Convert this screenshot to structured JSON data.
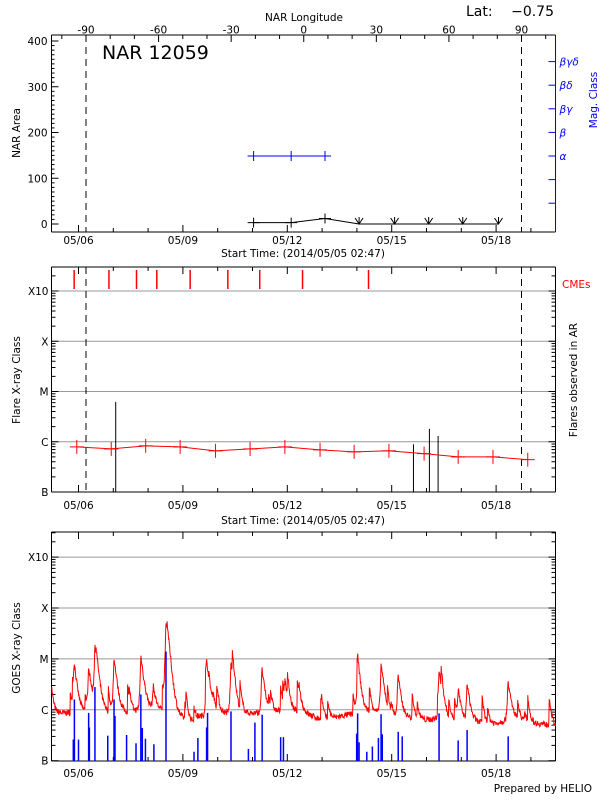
{
  "header": {
    "top_axis_label": "NAR Longitude",
    "lat_label": "Lat:",
    "lat_value": "−0.75"
  },
  "footer": "Prepared by HELIO",
  "colors": {
    "axis": "#000000",
    "grid": "#999999",
    "goes": "#ff0000",
    "flares": "#0000ff",
    "mag_class": "#0000ff",
    "cme": "#ff0000",
    "flare_class": "#ff0000"
  },
  "chart_data": [
    {
      "type": "line",
      "title": "NAR 12059",
      "xlabel": "Start Time: (2014/05/05 02:47)",
      "ylabel": "NAR Area",
      "y2label": "Mag. Class",
      "top_xlabel": "NAR Longitude",
      "top_xticks": [
        -90,
        -60,
        -30,
        0,
        30,
        60,
        90
      ],
      "limb_longitudes": [
        -90,
        90
      ],
      "xticks": [
        "05/06",
        "05/09",
        "05/12",
        "05/15",
        "05/18"
      ],
      "ylim": [
        0,
        400
      ],
      "yticks": [
        0,
        100,
        200,
        300,
        400
      ],
      "y2ticks": [
        "α",
        "β",
        "βγ",
        "βδ",
        "βγδ"
      ],
      "area": [
        {
          "t": "2014-05-11T00:45",
          "v": 3
        },
        {
          "t": "2014-05-12T02:40",
          "v": 3
        },
        {
          "t": "2014-05-13T02:00",
          "v": 12
        }
      ],
      "area_upper_limits": [
        {
          "t": "2014-05-14T01:30",
          "v": 0
        },
        {
          "t": "2014-05-15T02:00",
          "v": 0
        },
        {
          "t": "2014-05-16T01:30",
          "v": 0
        },
        {
          "t": "2014-05-17T01:00",
          "v": 0
        },
        {
          "t": "2014-05-18T01:40",
          "v": 0
        }
      ],
      "mag_class": [
        {
          "t": "2014-05-11T00:45",
          "class": "α"
        },
        {
          "t": "2014-05-12T02:40",
          "class": "α"
        },
        {
          "t": "2014-05-13T02:00",
          "class": "α"
        }
      ]
    },
    {
      "type": "line",
      "xlabel": "Start Time: (2014/05/05 02:47)",
      "ylabel": "Flare X-ray Class",
      "y2label": "Flares observed in AR",
      "cme_label": "CMEs",
      "xticks": [
        "05/06",
        "05/09",
        "05/12",
        "05/15",
        "05/18"
      ],
      "yticks": [
        "B",
        "C",
        "M",
        "X",
        "X10"
      ],
      "grid": true,
      "scale": "log",
      "daily_class": [
        {
          "t": "2014-05-05T22:50",
          "class": "B7.9"
        },
        {
          "t": "2014-05-06T22:35",
          "class": "B7.2"
        },
        {
          "t": "2014-05-07T22:20",
          "class": "B8.3"
        },
        {
          "t": "2014-05-08T22:05",
          "class": "B7.9"
        },
        {
          "t": "2014-05-09T22:30",
          "class": "B6.6"
        },
        {
          "t": "2014-05-10T22:20",
          "class": "B7.2"
        },
        {
          "t": "2014-05-11T22:20",
          "class": "B7.9"
        },
        {
          "t": "2014-05-12T22:35",
          "class": "B6.9"
        },
        {
          "t": "2014-05-13T22:05",
          "class": "B6.3"
        },
        {
          "t": "2014-05-14T22:05",
          "class": "B6.6"
        },
        {
          "t": "2014-05-15T22:20",
          "class": "B5.8"
        },
        {
          "t": "2014-05-16T21:50",
          "class": "B5.0"
        },
        {
          "t": "2014-05-17T21:50",
          "class": "B5.0"
        },
        {
          "t": "2014-05-18T21:50",
          "class": "B4.4"
        }
      ],
      "flares": [
        {
          "t": "2014-05-07T01:40",
          "class": "C6.2"
        },
        {
          "t": "2014-05-15T15:00",
          "class": "B8.9"
        },
        {
          "t": "2014-05-16T02:00",
          "class": "C1.8"
        },
        {
          "t": "2014-05-16T08:00",
          "class": "C1.3"
        }
      ],
      "cmes": [
        "2014-05-05T21:00",
        "2014-05-06T21:00",
        "2014-05-07T16:00",
        "2014-05-08T06:00",
        "2014-05-09T05:00",
        "2014-05-10T07:00",
        "2014-05-11T05:00",
        "2014-05-12T10:30",
        "2014-05-14T08:00"
      ]
    },
    {
      "type": "line",
      "ylabel": "GOES X-ray Class",
      "xticks": [
        "05/06",
        "05/09",
        "05/12",
        "05/15",
        "05/18"
      ],
      "yticks": [
        "B",
        "C",
        "M",
        "X",
        "X10"
      ],
      "grid": true,
      "scale": "log",
      "background": [
        {
          "t": "2014-05-05T03:00",
          "class": "B9.3"
        },
        {
          "t": "2014-05-05T12:00",
          "class": "B8.6"
        },
        {
          "t": "2014-05-06T00:00",
          "class": "B9.0"
        },
        {
          "t": "2014-05-06T12:00",
          "class": "B9.5"
        },
        {
          "t": "2014-05-07T00:00",
          "class": "B8.6"
        },
        {
          "t": "2014-05-07T12:00",
          "class": "B9.0"
        },
        {
          "t": "2014-05-08T00:00",
          "class": "C1.1"
        },
        {
          "t": "2014-05-08T12:00",
          "class": "B9.0"
        },
        {
          "t": "2014-05-09T00:00",
          "class": "B6.8"
        },
        {
          "t": "2014-05-09T06:00",
          "class": "B5.9"
        },
        {
          "t": "2014-05-09T12:00",
          "class": "B7.5"
        },
        {
          "t": "2014-05-10T00:00",
          "class": "B9.0"
        },
        {
          "t": "2014-05-10T12:00",
          "class": "B8.6"
        },
        {
          "t": "2014-05-11T00:00",
          "class": "B8.6"
        },
        {
          "t": "2014-05-11T12:00",
          "class": "B8.8"
        },
        {
          "t": "2014-05-12T00:00",
          "class": "C1.0"
        },
        {
          "t": "2014-05-12T12:00",
          "class": "B8.5"
        },
        {
          "t": "2014-05-13T00:00",
          "class": "B6.3"
        },
        {
          "t": "2014-05-13T12:00",
          "class": "B7.4"
        },
        {
          "t": "2014-05-14T00:00",
          "class": "B8.6"
        },
        {
          "t": "2014-05-14T12:00",
          "class": "B9.5"
        },
        {
          "t": "2014-05-15T00:00",
          "class": "B7.5"
        },
        {
          "t": "2014-05-15T12:00",
          "class": "B7.0"
        },
        {
          "t": "2014-05-16T00:00",
          "class": "B6.4"
        },
        {
          "t": "2014-05-16T12:00",
          "class": "B6.8"
        },
        {
          "t": "2014-05-17T00:00",
          "class": "B5.9"
        },
        {
          "t": "2014-05-17T12:00",
          "class": "B5.7"
        },
        {
          "t": "2014-05-18T00:00",
          "class": "B5.4"
        },
        {
          "t": "2014-05-18T12:00",
          "class": "B7.0"
        },
        {
          "t": "2014-05-19T00:00",
          "class": "B5.6"
        },
        {
          "t": "2014-05-19T16:00",
          "class": "B4.9"
        }
      ],
      "peaks": [
        {
          "t": "2014-05-05T21:00",
          "class": "C8.0"
        },
        {
          "t": "2014-05-06T07:00",
          "class": "C7.3"
        },
        {
          "t": "2014-05-06T11:20",
          "class": "M1.9"
        },
        {
          "t": "2014-05-07T00:30",
          "class": "M1.1"
        },
        {
          "t": "2014-05-07T19:00",
          "class": "M1.2"
        },
        {
          "t": "2014-05-08T03:30",
          "class": "C3.0"
        },
        {
          "t": "2014-05-08T12:20",
          "class": "M5.3"
        },
        {
          "t": "2014-05-09T16:20",
          "class": "C8.3"
        },
        {
          "t": "2014-05-10T09:10",
          "class": "C9.0"
        },
        {
          "t": "2014-05-11T06:30",
          "class": "C6.6"
        },
        {
          "t": "2014-05-11T22:20",
          "class": "C3.5"
        },
        {
          "t": "2014-05-12T08:00",
          "class": "C2.4"
        },
        {
          "t": "2014-05-14T00:30",
          "class": "C7.0"
        },
        {
          "t": "2014-05-14T16:40",
          "class": "C8.3"
        },
        {
          "t": "2014-05-15T04:20",
          "class": "C5.0"
        },
        {
          "t": "2014-05-16T08:40",
          "class": "C5.8"
        },
        {
          "t": "2014-05-16T21:50",
          "class": "C2.6"
        },
        {
          "t": "2014-05-17T04:00",
          "class": "C3.4"
        },
        {
          "t": "2014-05-18T08:10",
          "class": "C3.9"
        }
      ],
      "flares_observed": [
        {
          "t": "2014-05-05T20:25",
          "class": "B2.6"
        },
        {
          "t": "2014-05-05T21:10",
          "class": "C1.6"
        },
        {
          "t": "2014-05-06T00:00",
          "class": "B2.6"
        },
        {
          "t": "2014-05-06T07:00",
          "class": "B8.7"
        },
        {
          "t": "2014-05-06T07:30",
          "class": "B4.5"
        },
        {
          "t": "2014-05-06T11:20",
          "class": "C2.8"
        },
        {
          "t": "2014-05-06T20:10",
          "class": "B3.1"
        },
        {
          "t": "2014-05-07T00:30",
          "class": "C1.6"
        },
        {
          "t": "2014-05-07T01:10",
          "class": "B7.6"
        },
        {
          "t": "2014-05-07T09:10",
          "class": "B3.2"
        },
        {
          "t": "2014-05-07T15:40",
          "class": "B2.2"
        },
        {
          "t": "2014-05-07T19:00",
          "class": "C2.0"
        },
        {
          "t": "2014-05-07T20:00",
          "class": "B4.4"
        },
        {
          "t": "2014-05-07T22:10",
          "class": "B2.7"
        },
        {
          "t": "2014-05-08T04:00",
          "class": "B2.1"
        },
        {
          "t": "2014-05-08T12:20",
          "class": "M1.4"
        },
        {
          "t": "2014-05-09T07:40",
          "class": "B1.5"
        },
        {
          "t": "2014-05-09T10:20",
          "class": "B2.8"
        },
        {
          "t": "2014-05-09T16:20",
          "class": "B4.5"
        },
        {
          "t": "2014-05-09T17:00",
          "class": "B8.7"
        },
        {
          "t": "2014-05-10T09:10",
          "class": "B9.3"
        },
        {
          "t": "2014-05-10T21:10",
          "class": "B1.7"
        },
        {
          "t": "2014-05-11T01:40",
          "class": "B5.6"
        },
        {
          "t": "2014-05-11T06:40",
          "class": "B8.0"
        },
        {
          "t": "2014-05-11T19:25",
          "class": "B2.9"
        },
        {
          "t": "2014-05-11T21:20",
          "class": "B2.9"
        },
        {
          "t": "2014-05-13T23:50",
          "class": "B3.4"
        },
        {
          "t": "2014-05-14T00:30",
          "class": "B8.5"
        },
        {
          "t": "2014-05-14T01:30",
          "class": "B2.3"
        },
        {
          "t": "2014-05-14T06:50",
          "class": "B1.5"
        },
        {
          "t": "2014-05-14T10:40",
          "class": "B1.9"
        },
        {
          "t": "2014-05-14T14:50",
          "class": "B2.8"
        },
        {
          "t": "2014-05-14T16:40",
          "class": "B8.2"
        },
        {
          "t": "2014-05-14T17:30",
          "class": "B3.3"
        },
        {
          "t": "2014-05-15T04:30",
          "class": "B3.7"
        },
        {
          "t": "2014-05-15T07:15",
          "class": "B3.0"
        },
        {
          "t": "2014-05-16T08:40",
          "class": "B8.5"
        },
        {
          "t": "2014-05-16T21:50",
          "class": "B2.5"
        },
        {
          "t": "2014-05-17T04:00",
          "class": "B4.0"
        },
        {
          "t": "2014-05-18T08:20",
          "class": "B3.0"
        }
      ]
    }
  ]
}
